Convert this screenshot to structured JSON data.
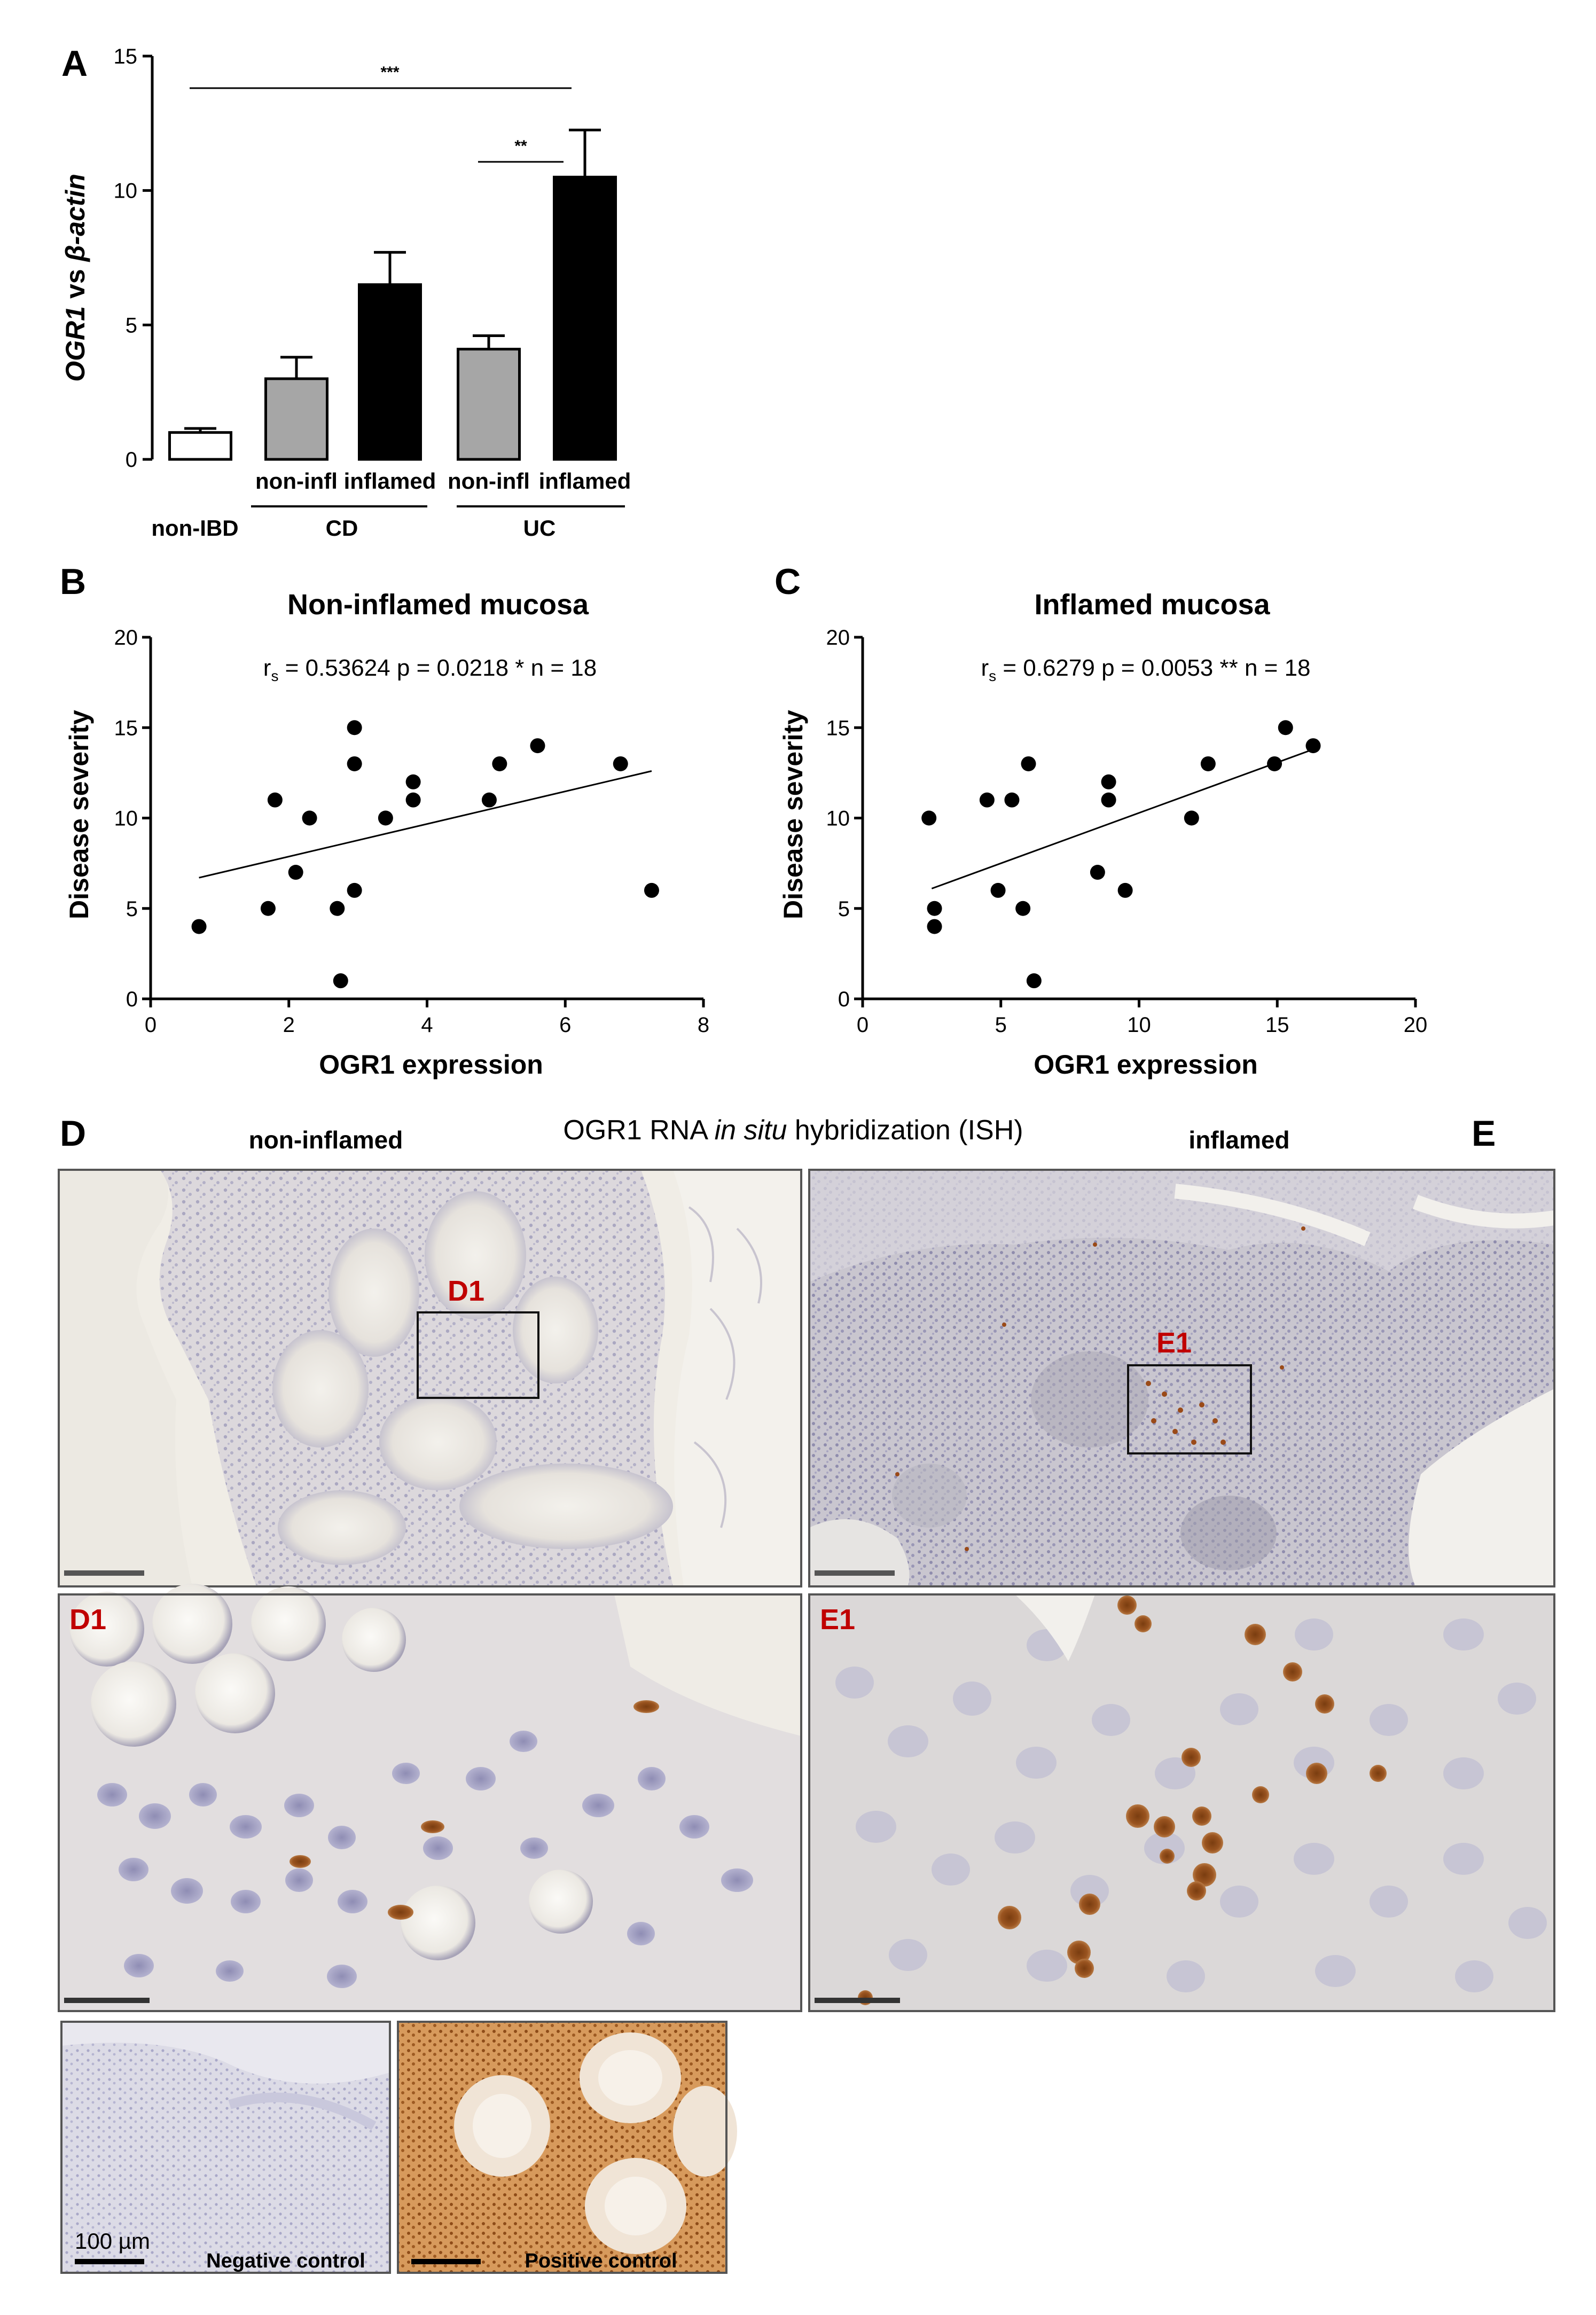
{
  "chart_data": [
    {
      "panel": "A",
      "type": "bar",
      "ylabel_gene": "OGR1",
      "ylabel_rest": " vs ",
      "ylabel_ref": "β-actin",
      "ylim": [
        0,
        15
      ],
      "yticks": [
        "0",
        "5",
        "10",
        "15"
      ],
      "categories": [
        "",
        "non-infl",
        "inflamed",
        "non-infl",
        "inflamed"
      ],
      "groups": [
        "non-IBD",
        "CD",
        "UC"
      ],
      "values": [
        1.0,
        3.0,
        6.5,
        4.1,
        10.5
      ],
      "errors": [
        0.15,
        0.8,
        1.2,
        0.5,
        1.75
      ],
      "fills": [
        "#ffffff",
        "#a6a6a6",
        "#000000",
        "#a6a6a6",
        "#000000"
      ],
      "significance": [
        {
          "from": 0,
          "to": 3,
          "label": "***"
        },
        {
          "from": 3,
          "to": 4,
          "label": "**"
        }
      ]
    },
    {
      "panel": "B",
      "type": "scatter",
      "title": "Non-inflamed mucosa",
      "xlabel": "OGR1 expression",
      "ylabel": "Disease severity",
      "xlim": [
        0,
        8
      ],
      "ylim": [
        0,
        20
      ],
      "xticks": [
        "0",
        "2",
        "4",
        "6",
        "8"
      ],
      "yticks": [
        "0",
        "5",
        "10",
        "15",
        "20"
      ],
      "stats": {
        "r_sym": "r",
        "r_sub": "s",
        "text": " = 0.53624  p = 0.0218 *  n = 18"
      },
      "points": [
        [
          0.7,
          4
        ],
        [
          1.7,
          5
        ],
        [
          1.8,
          11
        ],
        [
          2.1,
          7
        ],
        [
          2.3,
          10
        ],
        [
          2.7,
          5
        ],
        [
          2.75,
          1
        ],
        [
          2.95,
          15
        ],
        [
          2.95,
          13
        ],
        [
          2.95,
          6
        ],
        [
          3.4,
          10
        ],
        [
          3.8,
          12
        ],
        [
          3.8,
          11
        ],
        [
          4.9,
          11
        ],
        [
          5.05,
          13
        ],
        [
          5.6,
          14
        ],
        [
          6.8,
          13
        ],
        [
          7.25,
          6
        ]
      ],
      "fit": {
        "x": [
          0.7,
          7.25
        ],
        "y": [
          6.7,
          12.6
        ]
      }
    },
    {
      "panel": "C",
      "type": "scatter",
      "title": "Inflamed mucosa",
      "xlabel": "OGR1 expression",
      "ylabel": "Disease severity",
      "xlim": [
        0,
        20
      ],
      "ylim": [
        0,
        20
      ],
      "xticks": [
        "0",
        "5",
        "10",
        "15",
        "20"
      ],
      "yticks": [
        "0",
        "5",
        "10",
        "15",
        "20"
      ],
      "stats": {
        "r_sym": "r",
        "r_sub": "s",
        "text": " = 0.6279  p = 0.0053 **  n = 18"
      },
      "points": [
        [
          2.4,
          10
        ],
        [
          2.6,
          5
        ],
        [
          2.6,
          4
        ],
        [
          4.5,
          11
        ],
        [
          4.9,
          6
        ],
        [
          5.4,
          11
        ],
        [
          5.8,
          5
        ],
        [
          6.0,
          13
        ],
        [
          6.2,
          1
        ],
        [
          8.5,
          7
        ],
        [
          8.9,
          12
        ],
        [
          8.9,
          11
        ],
        [
          9.5,
          6
        ],
        [
          11.9,
          10
        ],
        [
          12.5,
          13
        ],
        [
          14.9,
          13
        ],
        [
          15.3,
          15
        ],
        [
          16.3,
          14
        ]
      ],
      "fit": {
        "x": [
          2.5,
          16.3
        ],
        "y": [
          6.1,
          13.8
        ]
      }
    }
  ],
  "ish": {
    "panel_d": "D",
    "panel_e": "E",
    "heading_pre": "OGR1  RNA ",
    "heading_ital": "in situ",
    "heading_post": " hybridization (ISH)",
    "left_label": "non-inflamed",
    "right_label": "inflamed",
    "roi_d": "D1",
    "roi_e": "E1",
    "neg_label": "Negative control",
    "pos_label": "Positive control",
    "scale_label": "100 µm"
  }
}
